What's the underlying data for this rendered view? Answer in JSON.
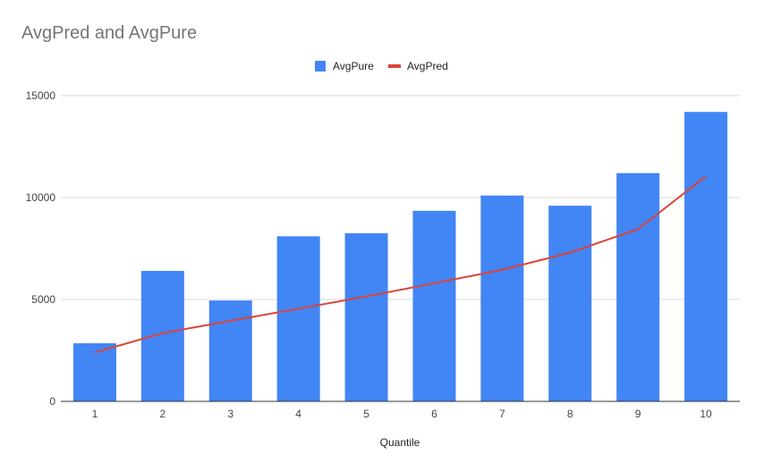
{
  "chart_data": {
    "type": "bar",
    "title": "AvgPred and AvgPure",
    "xlabel": "Quantile",
    "ylabel": "",
    "categories": [
      "1",
      "2",
      "3",
      "4",
      "5",
      "6",
      "7",
      "8",
      "9",
      "10"
    ],
    "ylim": [
      0,
      15000
    ],
    "yticks": [
      0,
      5000,
      10000,
      15000
    ],
    "grid": true,
    "legend_position": "top",
    "series": [
      {
        "name": "AvgPure",
        "type": "bar",
        "color": "#4285f4",
        "values": [
          2850,
          6400,
          4950,
          8100,
          8250,
          9350,
          10100,
          9600,
          11200,
          14200
        ]
      },
      {
        "name": "AvgPred",
        "type": "line",
        "color": "#db4437",
        "values": [
          2400,
          3350,
          3950,
          4550,
          5150,
          5800,
          6450,
          7300,
          8450,
          11050
        ]
      }
    ]
  }
}
